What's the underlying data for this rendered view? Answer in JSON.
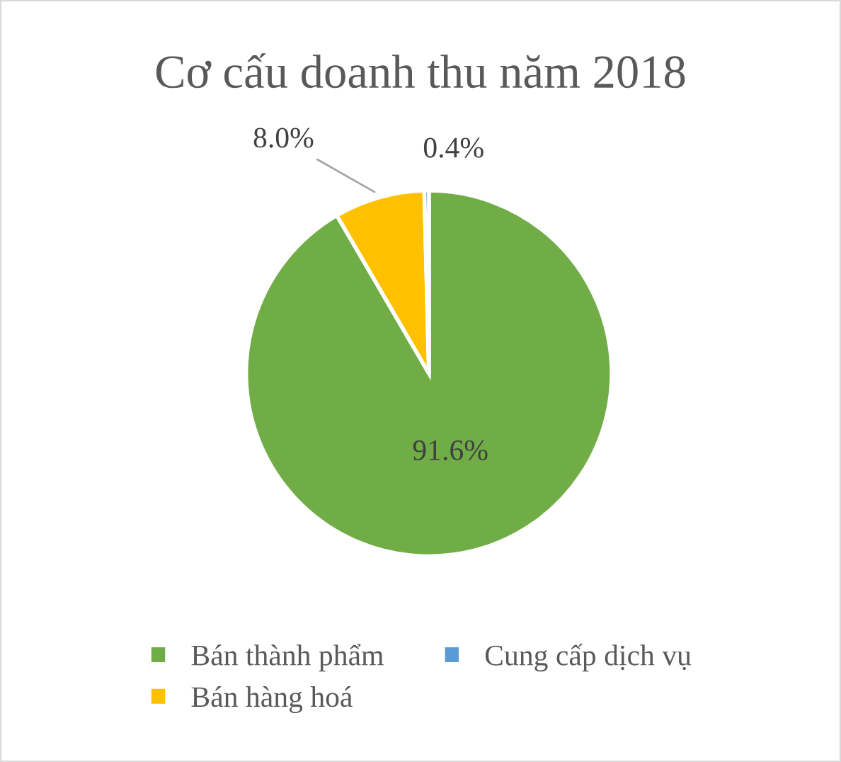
{
  "chart_data": {
    "type": "pie",
    "title": "Cơ cấu doanh thu năm 2018",
    "categories": [
      "Bán thành phẩm",
      "Bán hàng hoá",
      "Cung cấp dịch vụ"
    ],
    "values": [
      91.6,
      8.0,
      0.4
    ],
    "colors": [
      "#70ad47",
      "#ffc000",
      "#5b9bd5"
    ],
    "value_labels": [
      "91.6%",
      "8.0%",
      "0.4%"
    ],
    "legend": "bottom"
  }
}
